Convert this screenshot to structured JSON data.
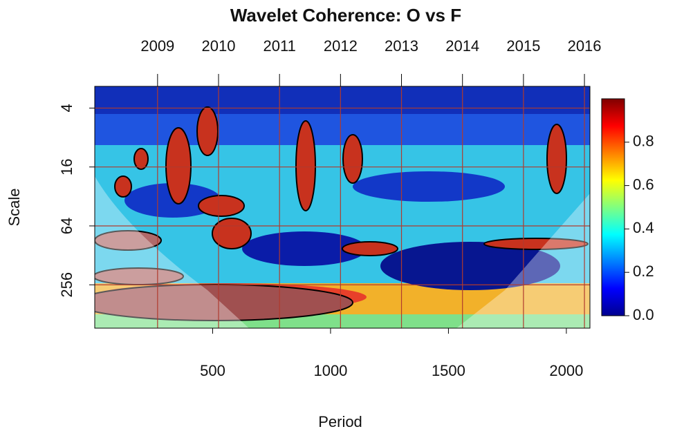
{
  "chart_data": {
    "type": "wavelet-coherence",
    "title": "Wavelet Coherence: O vs F",
    "x_label": "Period",
    "y_label": "Scale",
    "xlim": [
      0,
      2100
    ],
    "xticks": [
      500,
      1000,
      1500,
      2000
    ],
    "ylim": [
      2.4,
      710
    ],
    "y_log_base": 2,
    "y_inverted": true,
    "yticks": [
      4,
      16,
      64,
      256
    ],
    "x2lim": [
      2007.97,
      2016.09
    ],
    "x2ticks": [
      2009,
      2010,
      2011,
      2012,
      2013,
      2014,
      2015,
      2016
    ],
    "grid": true,
    "grid_color": "#b03a2e",
    "colorbar": {
      "lim": [
        0,
        1
      ],
      "ticks": [
        {
          "value": 0,
          "label": "0.0"
        },
        0.2,
        0.4,
        0.6,
        0.8
      ],
      "colors": [
        "#00008f",
        "#0000ff",
        "#0080ff",
        "#00ffff",
        "#80ff80",
        "#ffff00",
        "#ff8000",
        "#ff0000",
        "#800000"
      ]
    }
  }
}
